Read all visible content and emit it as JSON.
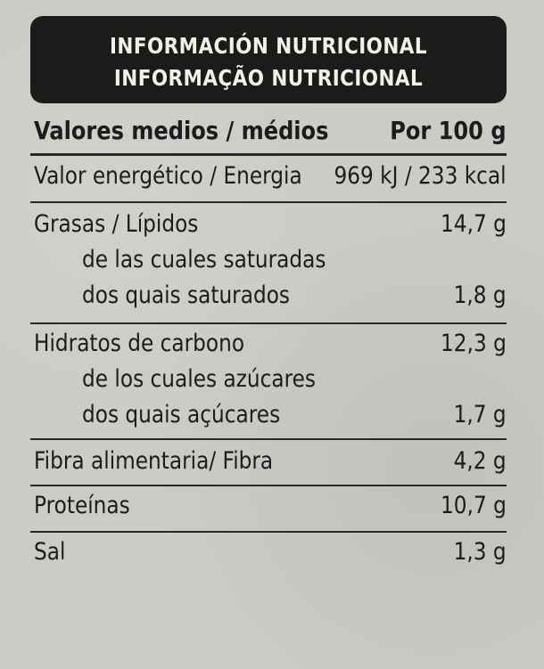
{
  "header": {
    "line1": "INFORMACIÓN NUTRICIONAL",
    "line2": "INFORMAÇÃO NUTRICIONAL"
  },
  "columns": {
    "left": "Valores medios / médios",
    "right": "Por 100 g"
  },
  "rows": [
    {
      "label": "Valor energético / Energia",
      "value": "969 kJ / 233 kcal"
    },
    {
      "label": "Grasas / Lípidos",
      "value": "14,7 g"
    },
    {
      "label": "de las cuales saturadas",
      "value": ""
    },
    {
      "label": "dos quais saturados",
      "value": "1,8 g"
    },
    {
      "label": "Hidratos de carbono",
      "value": "12,3 g"
    },
    {
      "label": "de los cuales azúcares",
      "value": ""
    },
    {
      "label": "dos quais açúcares",
      "value": "1,7 g"
    },
    {
      "label": "Fibra alimentaria/ Fibra",
      "value": "4,2 g"
    },
    {
      "label": "Proteínas",
      "value": "10,7 g"
    },
    {
      "label": "Sal",
      "value": "1,3 g"
    }
  ]
}
